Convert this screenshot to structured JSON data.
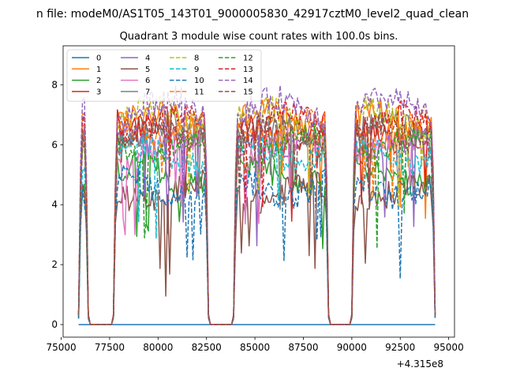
{
  "chart_data": {
    "type": "line",
    "suptitle": "n file: modeM0/AS1T05_143T01_9000005830_42917cztM0_level2_quad_clean",
    "title": "Quadrant 3 module wise count rates with 100.0s bins.",
    "xlabel": "",
    "ylabel": "",
    "x_offset_label": "+4.315e8",
    "xlim": [
      75100,
      95300
    ],
    "ylim": [
      -0.42,
      9.3
    ],
    "xticks": [
      75000,
      77500,
      80000,
      82500,
      85000,
      87500,
      90000,
      92500,
      95000
    ],
    "xtick_labels": [
      "75000",
      "77500",
      "80000",
      "82500",
      "85000",
      "87500",
      "90000",
      "92500",
      "95000"
    ],
    "yticks": [
      0,
      2,
      4,
      6,
      8
    ],
    "ytick_labels": [
      "0",
      "2",
      "4",
      "6",
      "8"
    ],
    "legend": {
      "placement": "top-left",
      "ncol": 4
    },
    "segments": [
      {
        "on": [
          75900,
          76400
        ],
        "off": [
          76600,
          77700
        ]
      },
      {
        "on": [
          77700,
          82600
        ],
        "off": [
          82700,
          83900
        ]
      },
      {
        "on": [
          83900,
          88800
        ],
        "off": [
          88900,
          90000
        ]
      },
      {
        "on": [
          90000,
          94300
        ]
      }
    ],
    "series": [
      {
        "name": "0",
        "color": "#1f77b4",
        "style": "solid",
        "level": 0.0,
        "constant": true
      },
      {
        "name": "1",
        "color": "#ff7f0e",
        "style": "solid",
        "level": 6.8
      },
      {
        "name": "2",
        "color": "#2ca02c",
        "style": "solid",
        "level": 5.0
      },
      {
        "name": "3",
        "color": "#d62728",
        "style": "solid",
        "level": 6.5
      },
      {
        "name": "4",
        "color": "#9467bd",
        "style": "solid",
        "level": 6.2
      },
      {
        "name": "5",
        "color": "#8c564b",
        "style": "solid",
        "level": 4.4
      },
      {
        "name": "6",
        "color": "#e377c2",
        "style": "solid",
        "level": 5.9
      },
      {
        "name": "7",
        "color": "#7f7f7f",
        "style": "solid",
        "level": 6.4
      },
      {
        "name": "8",
        "color": "#bcbd22",
        "style": "dashed",
        "level": 6.9
      },
      {
        "name": "9",
        "color": "#17becf",
        "style": "dashed",
        "level": 5.7
      },
      {
        "name": "10",
        "color": "#1f77b4",
        "style": "dashed",
        "level": 4.6
      },
      {
        "name": "11",
        "color": "#ff7f0e",
        "style": "dashed",
        "level": 6.6
      },
      {
        "name": "12",
        "color": "#2ca02c",
        "style": "dashed",
        "level": 6.0
      },
      {
        "name": "13",
        "color": "#d62728",
        "style": "dashed",
        "level": 6.7
      },
      {
        "name": "14",
        "color": "#9467bd",
        "style": "dashed",
        "level": 7.2
      },
      {
        "name": "15",
        "color": "#8c564b",
        "style": "dashed",
        "level": 6.3
      }
    ]
  }
}
